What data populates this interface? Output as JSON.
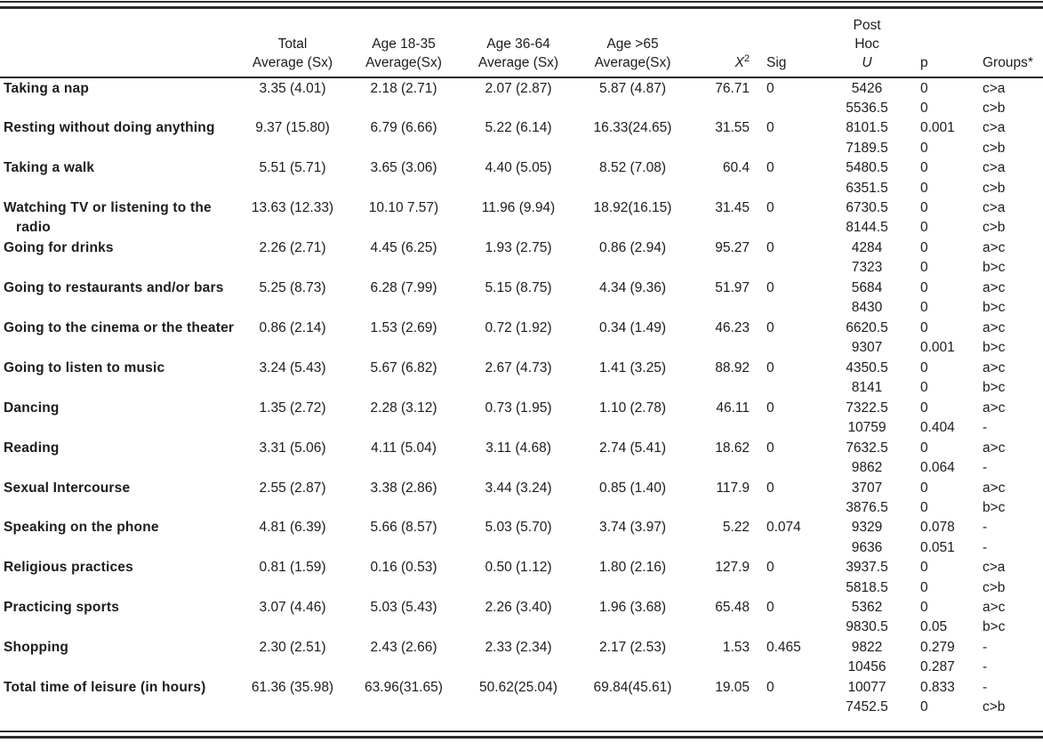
{
  "table": {
    "headers": {
      "activity": "",
      "total": {
        "line1": "Total",
        "line2": "Average (Sx)"
      },
      "age_18_35": {
        "line1": "Age 18-35",
        "line2": "Average(Sx)"
      },
      "age_36_64": {
        "line1": "Age 36-64",
        "line2": "Average (Sx)"
      },
      "age_over_65": {
        "line1": "Age >65",
        "line2": "Average(Sx)"
      },
      "chi_square": {
        "symbol": "X",
        "superscript": "2"
      },
      "sig": "Sig",
      "post_hoc": {
        "line1": "Post",
        "line2": "Hoc",
        "line3": "U"
      },
      "p": "p",
      "groups": "Groups*"
    },
    "rows": [
      {
        "activity": "Taking a nap",
        "total": "3.35 (4.01)",
        "age_18_35": "2.18 (2.71)",
        "age_36_64": "2.07 (2.87)",
        "age_over_65": "5.87 (4.87)",
        "chi_square": "76.71",
        "sig": "0",
        "u": [
          "5426",
          "5536.5"
        ],
        "p": [
          "0",
          "0"
        ],
        "groups": [
          "c>a",
          "c>b"
        ]
      },
      {
        "activity": "Resting without doing anything",
        "total": "9.37 (15.80)",
        "age_18_35": "6.79 (6.66)",
        "age_36_64": "5.22 (6.14)",
        "age_over_65": "16.33(24.65)",
        "chi_square": "31.55",
        "sig": "0",
        "u": [
          "8101.5",
          "7189.5"
        ],
        "p": [
          "0.001",
          "0"
        ],
        "groups": [
          "c>a",
          "c>b"
        ]
      },
      {
        "activity": "Taking a walk",
        "total": "5.51 (5.71)",
        "age_18_35": "3.65 (3.06)",
        "age_36_64": "4.40 (5.05)",
        "age_over_65": "8.52 (7.08)",
        "chi_square": "60.4",
        "sig": "0",
        "u": [
          "5480.5",
          "6351.5"
        ],
        "p": [
          "0",
          "0"
        ],
        "groups": [
          "c>a",
          "c>b"
        ]
      },
      {
        "activity": "Watching TV or listening to the radio",
        "total": "13.63 (12.33)",
        "age_18_35": "10.10 7.57)",
        "age_36_64": "11.96 (9.94)",
        "age_over_65": "18.92(16.15)",
        "chi_square": "31.45",
        "sig": "0",
        "u": [
          "6730.5",
          "8144.5"
        ],
        "p": [
          "0",
          "0"
        ],
        "groups": [
          "c>a",
          "c>b"
        ]
      },
      {
        "activity": "Going for drinks",
        "total": "2.26 (2.71)",
        "age_18_35": "4.45 (6.25)",
        "age_36_64": "1.93 (2.75)",
        "age_over_65": "0.86 (2.94)",
        "chi_square": "95.27",
        "sig": "0",
        "u": [
          "4284",
          "7323"
        ],
        "p": [
          "0",
          "0"
        ],
        "groups": [
          "a>c",
          "b>c"
        ]
      },
      {
        "activity": "Going to restaurants and/or bars",
        "total": "5.25 (8.73)",
        "age_18_35": "6.28 (7.99)",
        "age_36_64": "5.15 (8.75)",
        "age_over_65": "4.34 (9.36)",
        "chi_square": "51.97",
        "sig": "0",
        "u": [
          "5684",
          "8430"
        ],
        "p": [
          "0",
          "0"
        ],
        "groups": [
          "a>c",
          "b>c"
        ]
      },
      {
        "activity": "Going to the cinema or the theater",
        "total": "0.86 (2.14)",
        "age_18_35": "1.53 (2.69)",
        "age_36_64": "0.72 (1.92)",
        "age_over_65": "0.34 (1.49)",
        "chi_square": "46.23",
        "sig": "0",
        "u": [
          "6620.5",
          "9307"
        ],
        "p": [
          "0",
          "0.001"
        ],
        "groups": [
          "a>c",
          "b>c"
        ]
      },
      {
        "activity": "Going to listen to music",
        "total": "3.24 (5.43)",
        "age_18_35": "5.67 (6.82)",
        "age_36_64": "2.67 (4.73)",
        "age_over_65": "1.41 (3.25)",
        "chi_square": "88.92",
        "sig": "0",
        "u": [
          "4350.5",
          "8141"
        ],
        "p": [
          "0",
          "0"
        ],
        "groups": [
          "a>c",
          "b>c"
        ]
      },
      {
        "activity": "Dancing",
        "total": "1.35 (2.72)",
        "age_18_35": "2.28 (3.12)",
        "age_36_64": "0.73 (1.95)",
        "age_over_65": "1.10 (2.78)",
        "chi_square": "46.11",
        "sig": "0",
        "u": [
          "7322.5",
          "10759"
        ],
        "p": [
          "0",
          "0.404"
        ],
        "groups": [
          "a>c",
          "-"
        ]
      },
      {
        "activity": "Reading",
        "total": "3.31 (5.06)",
        "age_18_35": "4.11 (5.04)",
        "age_36_64": "3.11 (4.68)",
        "age_over_65": "2.74 (5.41)",
        "chi_square": "18.62",
        "sig": "0",
        "u": [
          "7632.5",
          "9862"
        ],
        "p": [
          "0",
          "0.064"
        ],
        "groups": [
          "a>c",
          "-"
        ]
      },
      {
        "activity": "Sexual Intercourse",
        "total": "2.55 (2.87)",
        "age_18_35": "3.38 (2.86)",
        "age_36_64": "3.44 (3.24)",
        "age_over_65": "0.85 (1.40)",
        "chi_square": "117.9",
        "sig": "0",
        "u": [
          "3707",
          "3876.5"
        ],
        "p": [
          "0",
          "0"
        ],
        "groups": [
          "a>c",
          "b>c"
        ]
      },
      {
        "activity": "Speaking on the phone",
        "total": "4.81 (6.39)",
        "age_18_35": "5.66 (8.57)",
        "age_36_64": "5.03 (5.70)",
        "age_over_65": "3.74 (3.97)",
        "chi_square": "5.22",
        "sig": "0.074",
        "u": [
          "9329",
          "9636"
        ],
        "p": [
          "0.078",
          "0.051"
        ],
        "groups": [
          "-",
          "-"
        ]
      },
      {
        "activity": "Religious practices",
        "total": "0.81 (1.59)",
        "age_18_35": "0.16 (0.53)",
        "age_36_64": "0.50 (1.12)",
        "age_over_65": "1.80 (2.16)",
        "chi_square": "127.9",
        "sig": "0",
        "u": [
          "3937.5",
          "5818.5"
        ],
        "p": [
          "0",
          "0"
        ],
        "groups": [
          "c>a",
          "c>b"
        ]
      },
      {
        "activity": "Practicing sports",
        "total": "3.07 (4.46)",
        "age_18_35": "5.03 (5.43)",
        "age_36_64": "2.26 (3.40)",
        "age_over_65": "1.96 (3.68)",
        "chi_square": "65.48",
        "sig": "0",
        "u": [
          "5362",
          "9830.5"
        ],
        "p": [
          "0",
          "0.05"
        ],
        "groups": [
          "a>c",
          "b>c"
        ]
      },
      {
        "activity": "Shopping",
        "total": "2.30 (2.51)",
        "age_18_35": "2.43 (2.66)",
        "age_36_64": "2.33 (2.34)",
        "age_over_65": "2.17 (2.53)",
        "chi_square": "1.53",
        "sig": "0.465",
        "u": [
          "9822",
          "10456"
        ],
        "p": [
          "0.279",
          "0.287"
        ],
        "groups": [
          "-",
          "-"
        ]
      },
      {
        "activity": "Total time of leisure (in hours)",
        "total": "61.36 (35.98)",
        "age_18_35": "63.96(31.65)",
        "age_36_64": "50.62(25.04)",
        "age_over_65": "69.84(45.61)",
        "chi_square": "19.05",
        "sig": "0",
        "u": [
          "10077",
          "7452.5"
        ],
        "p": [
          "0.833",
          "0"
        ],
        "groups": [
          "-",
          "c>b"
        ]
      }
    ]
  }
}
